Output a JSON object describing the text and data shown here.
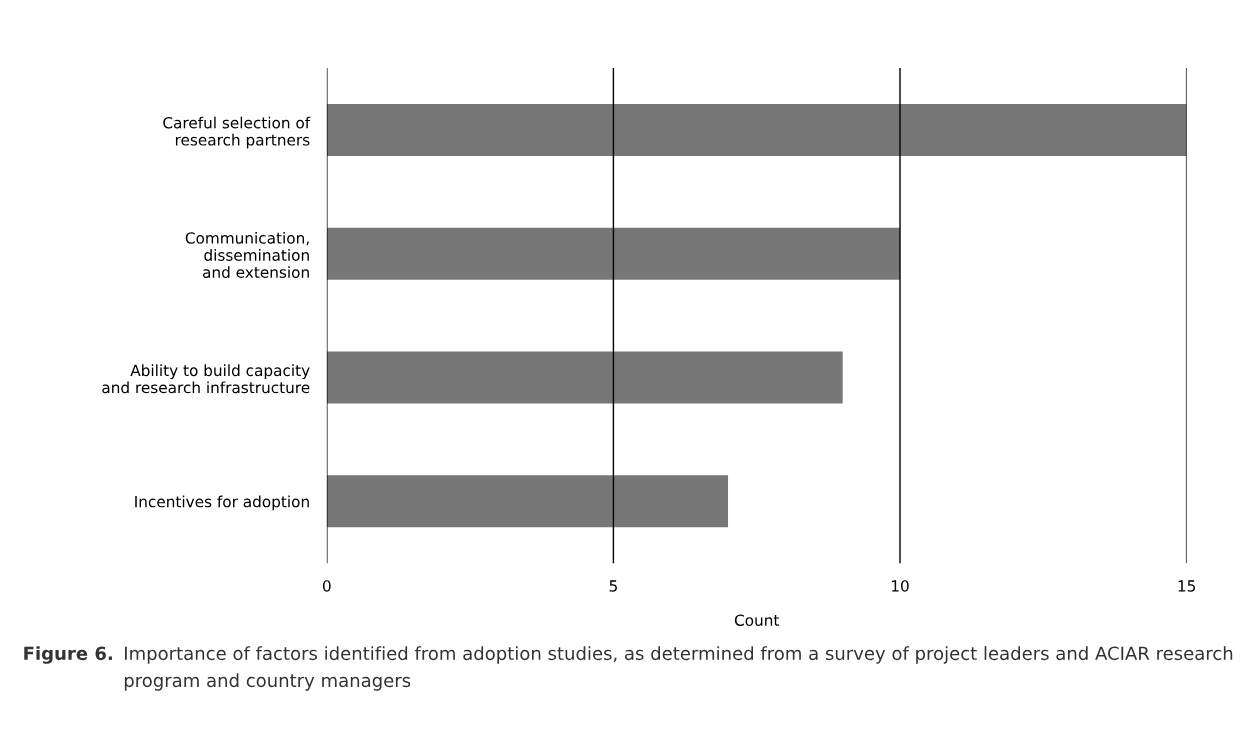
{
  "chart_data": {
    "type": "bar",
    "orientation": "horizontal",
    "categories": [
      "Careful selection of\nresearch partners",
      "Communication,\ndissemination\nand extension",
      "Ability to build capacity\nand research infrastructure",
      "Incentives for adoption"
    ],
    "values": [
      15,
      10,
      9,
      7
    ],
    "color": "#777777",
    "xlim": [
      0,
      15
    ],
    "xticks": [
      0,
      5,
      10,
      15
    ],
    "xlabel": "Count",
    "grid": "x",
    "annotations": [
      "Figure 6.",
      "Importance of factors identified from adoption studies, as determined from a survey of project leaders and ACIAR research program and country managers"
    ]
  }
}
